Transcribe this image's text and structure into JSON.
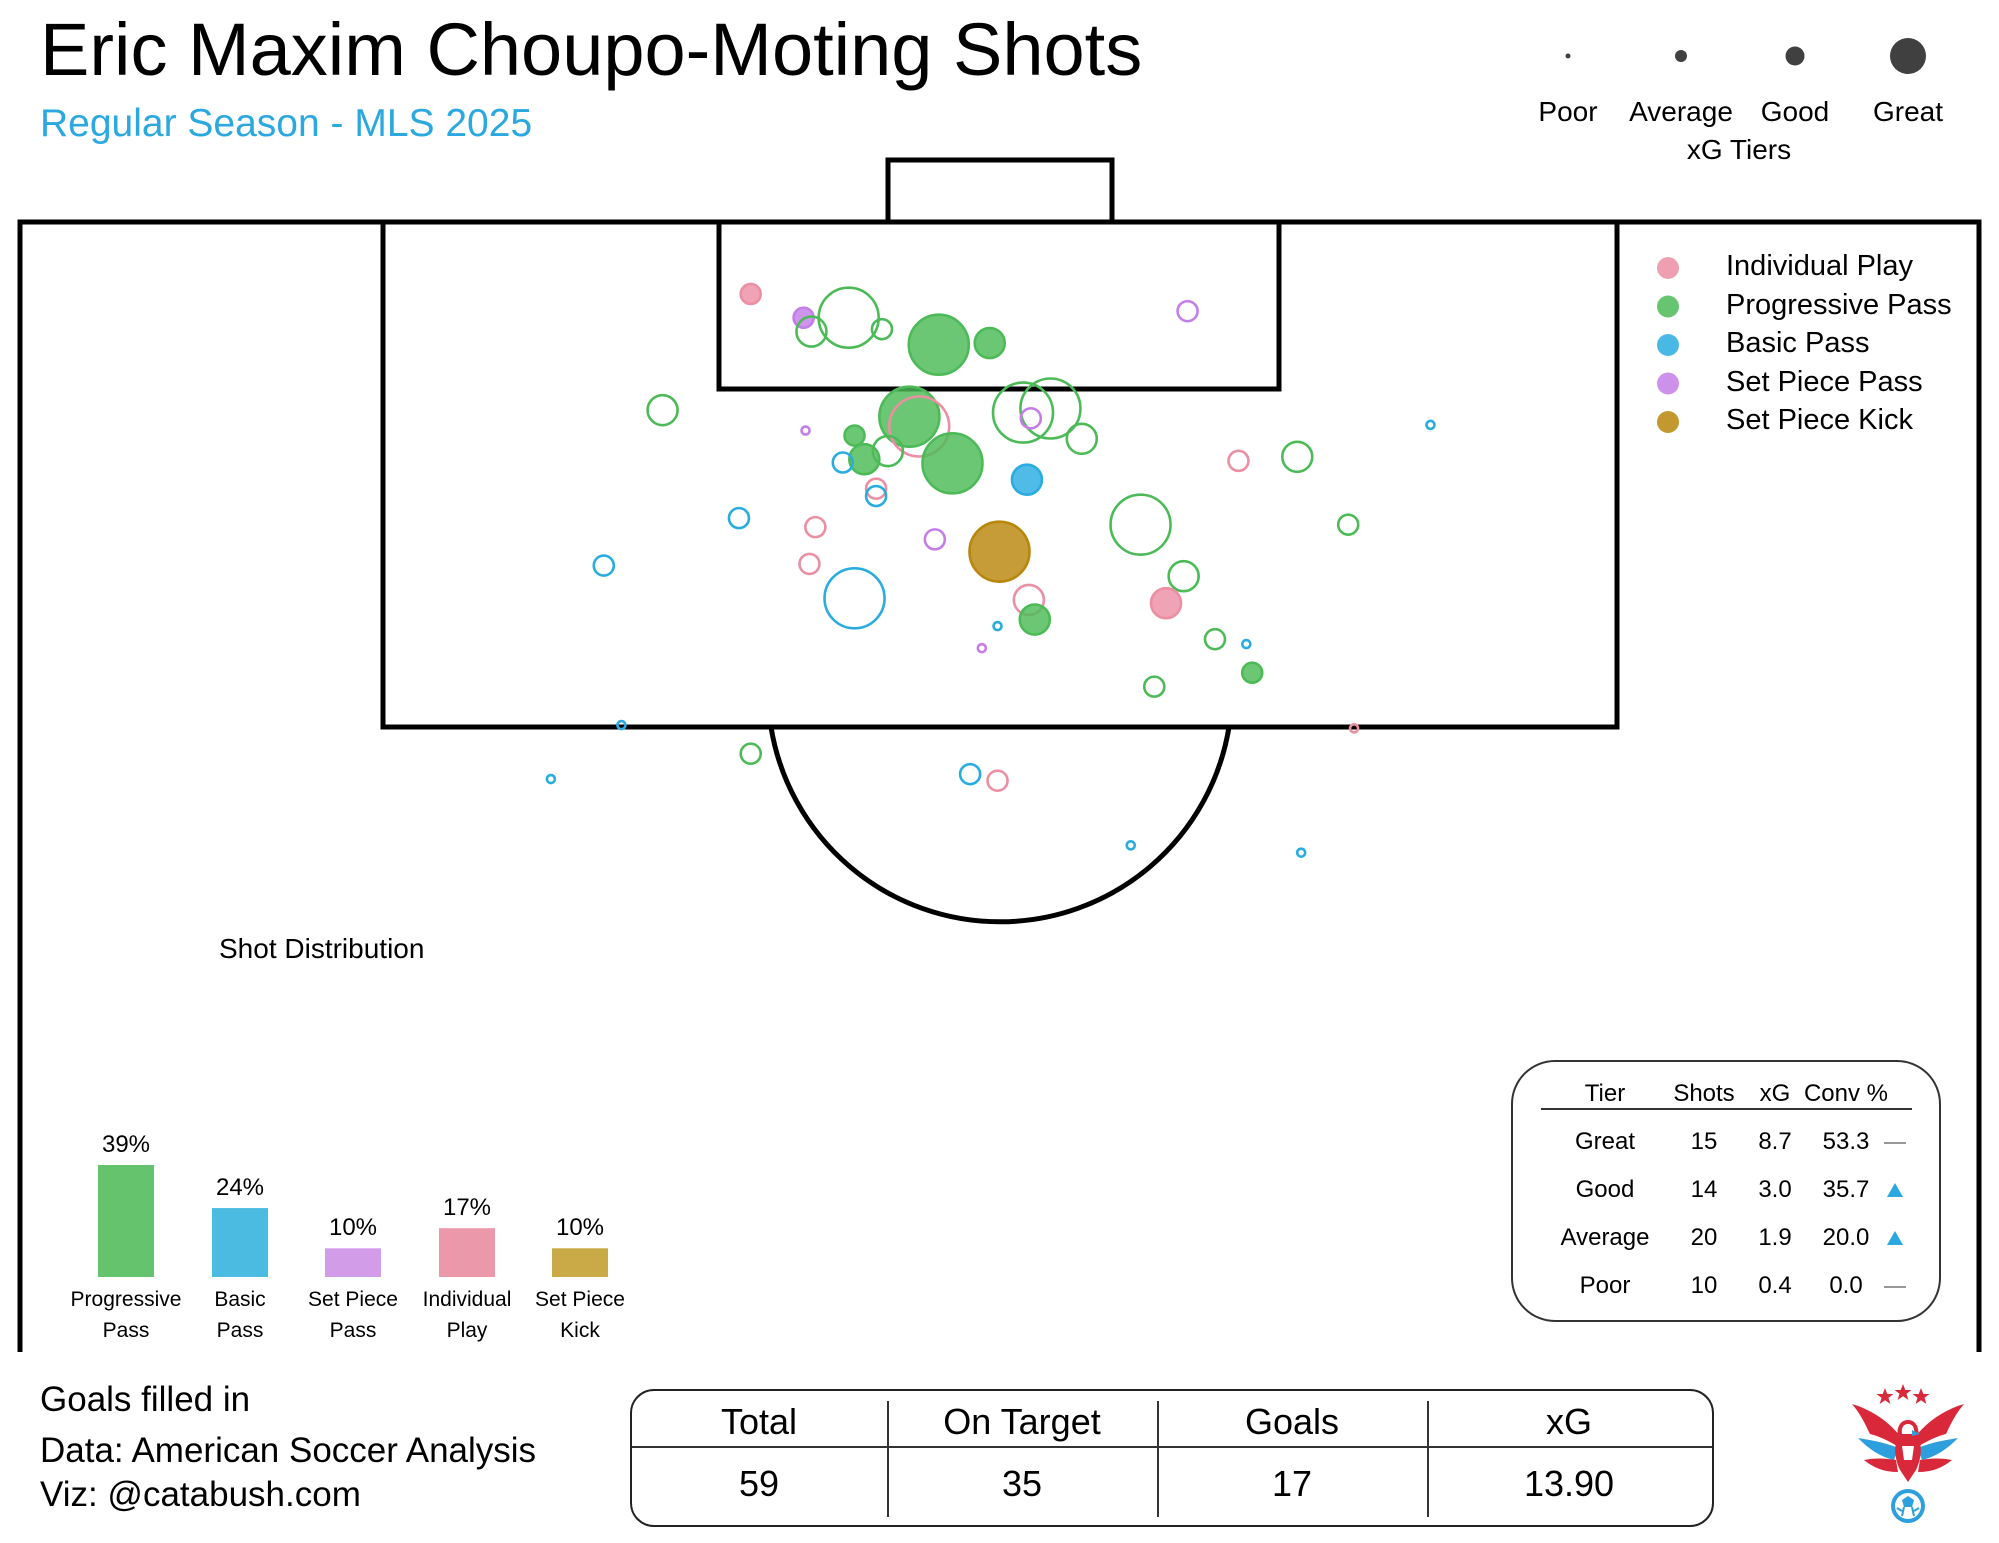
{
  "title": "Eric Maxim Choupo-Moting Shots",
  "subtitle": "Regular Season - MLS 2025",
  "xg_tiers_legend": {
    "title": "xG Tiers",
    "tiers": [
      "Poor",
      "Average",
      "Good",
      "Great"
    ],
    "marker_color": "#404040"
  },
  "play_type_legend": [
    {
      "label": "Individual Play",
      "color": "#eb8fa3"
    },
    {
      "label": "Progressive Pass",
      "color": "#4cbb57"
    },
    {
      "label": "Basic Pass",
      "color": "#2aace0"
    },
    {
      "label": "Set Piece Pass",
      "color": "#c57ee8"
    },
    {
      "label": "Set Piece Kick",
      "color": "#b8860b"
    }
  ],
  "chart_data": [
    {
      "type": "scatter",
      "title": "Eric Maxim Choupo-Moting Shots",
      "subtitle": "Regular Season - MLS 2025",
      "note": "Goals filled in",
      "axis_ranges": {
        "x": [
          0,
          100
        ],
        "y": [
          0,
          100
        ]
      },
      "grid": false,
      "legend_placement": "top-right",
      "size_encoding": "xG tier (Poor, Average, Good, Great)",
      "fill_encoding": "goal scored",
      "points": [
        {
          "x": 37.3,
          "y": 91.2,
          "tier": "Average",
          "play": "Individual Play",
          "goal": true
        },
        {
          "x": 40.0,
          "y": 88.3,
          "tier": "Average",
          "play": "Set Piece Pass",
          "goal": true
        },
        {
          "x": 42.3,
          "y": 88.3,
          "tier": "Great",
          "play": "Progressive Pass",
          "goal": false
        },
        {
          "x": 40.4,
          "y": 86.6,
          "tier": "Good",
          "play": "Progressive Pass",
          "goal": false
        },
        {
          "x": 44.0,
          "y": 86.9,
          "tier": "Average",
          "play": "Progressive Pass",
          "goal": false
        },
        {
          "x": 46.9,
          "y": 85.0,
          "tier": "Great",
          "play": "Progressive Pass",
          "goal": true
        },
        {
          "x": 49.5,
          "y": 85.2,
          "tier": "Good",
          "play": "Progressive Pass",
          "goal": true
        },
        {
          "x": 59.6,
          "y": 89.1,
          "tier": "Average",
          "play": "Set Piece Pass",
          "goal": false
        },
        {
          "x": 32.8,
          "y": 77.0,
          "tier": "Good",
          "play": "Progressive Pass",
          "goal": false
        },
        {
          "x": 40.1,
          "y": 74.5,
          "tier": "Poor",
          "play": "Set Piece Pass",
          "goal": false
        },
        {
          "x": 45.4,
          "y": 76.2,
          "tier": "Great",
          "play": "Progressive Pass",
          "goal": true
        },
        {
          "x": 45.9,
          "y": 75.0,
          "tier": "Great",
          "play": "Individual Play",
          "goal": false
        },
        {
          "x": 51.2,
          "y": 76.7,
          "tier": "Great",
          "play": "Progressive Pass",
          "goal": false
        },
        {
          "x": 52.6,
          "y": 77.2,
          "tier": "Great",
          "play": "Progressive Pass",
          "goal": false
        },
        {
          "x": 51.6,
          "y": 76.0,
          "tier": "Average",
          "play": "Set Piece Pass",
          "goal": false
        },
        {
          "x": 54.2,
          "y": 73.5,
          "tier": "Good",
          "play": "Progressive Pass",
          "goal": false
        },
        {
          "x": 42.6,
          "y": 73.9,
          "tier": "Average",
          "play": "Progressive Pass",
          "goal": true
        },
        {
          "x": 44.3,
          "y": 72.0,
          "tier": "Good",
          "play": "Progressive Pass",
          "goal": false
        },
        {
          "x": 43.1,
          "y": 71.0,
          "tier": "Good",
          "play": "Progressive Pass",
          "goal": true
        },
        {
          "x": 42.0,
          "y": 70.6,
          "tier": "Average",
          "play": "Basic Pass",
          "goal": false
        },
        {
          "x": 47.6,
          "y": 70.5,
          "tier": "Great",
          "play": "Progressive Pass",
          "goal": true
        },
        {
          "x": 51.4,
          "y": 68.5,
          "tier": "Good",
          "play": "Basic Pass",
          "goal": true
        },
        {
          "x": 43.7,
          "y": 67.4,
          "tier": "Average",
          "play": "Individual Play",
          "goal": false
        },
        {
          "x": 43.7,
          "y": 66.5,
          "tier": "Average",
          "play": "Basic Pass",
          "goal": false
        },
        {
          "x": 57.2,
          "y": 63.0,
          "tier": "Great",
          "play": "Progressive Pass",
          "goal": false
        },
        {
          "x": 62.2,
          "y": 70.8,
          "tier": "Average",
          "play": "Individual Play",
          "goal": false
        },
        {
          "x": 65.2,
          "y": 71.3,
          "tier": "Good",
          "play": "Progressive Pass",
          "goal": false
        },
        {
          "x": 72.0,
          "y": 75.2,
          "tier": "Poor",
          "play": "Basic Pass",
          "goal": false
        },
        {
          "x": 36.7,
          "y": 63.8,
          "tier": "Average",
          "play": "Basic Pass",
          "goal": false
        },
        {
          "x": 40.6,
          "y": 62.7,
          "tier": "Average",
          "play": "Individual Play",
          "goal": false
        },
        {
          "x": 46.7,
          "y": 61.2,
          "tier": "Average",
          "play": "Set Piece Pass",
          "goal": false
        },
        {
          "x": 50.0,
          "y": 59.7,
          "tier": "Great",
          "play": "Set Piece Kick",
          "goal": true
        },
        {
          "x": 59.4,
          "y": 56.7,
          "tier": "Good",
          "play": "Progressive Pass",
          "goal": false
        },
        {
          "x": 67.8,
          "y": 63.0,
          "tier": "Average",
          "play": "Progressive Pass",
          "goal": false
        },
        {
          "x": 29.8,
          "y": 58.0,
          "tier": "Average",
          "play": "Basic Pass",
          "goal": false
        },
        {
          "x": 40.3,
          "y": 58.2,
          "tier": "Average",
          "play": "Individual Play",
          "goal": false
        },
        {
          "x": 42.6,
          "y": 54.0,
          "tier": "Great",
          "play": "Basic Pass",
          "goal": false
        },
        {
          "x": 51.5,
          "y": 53.8,
          "tier": "Good",
          "play": "Individual Play",
          "goal": false
        },
        {
          "x": 58.5,
          "y": 53.4,
          "tier": "Good",
          "play": "Individual Play",
          "goal": true
        },
        {
          "x": 51.8,
          "y": 51.4,
          "tier": "Good",
          "play": "Progressive Pass",
          "goal": true
        },
        {
          "x": 49.9,
          "y": 50.6,
          "tier": "Poor",
          "play": "Basic Pass",
          "goal": false
        },
        {
          "x": 61.0,
          "y": 49.0,
          "tier": "Average",
          "play": "Progressive Pass",
          "goal": false
        },
        {
          "x": 62.6,
          "y": 48.4,
          "tier": "Poor",
          "play": "Basic Pass",
          "goal": false
        },
        {
          "x": 49.1,
          "y": 47.9,
          "tier": "Poor",
          "play": "Set Piece Pass",
          "goal": false
        },
        {
          "x": 62.9,
          "y": 44.9,
          "tier": "Average",
          "play": "Progressive Pass",
          "goal": true
        },
        {
          "x": 57.9,
          "y": 43.2,
          "tier": "Average",
          "play": "Progressive Pass",
          "goal": false
        },
        {
          "x": 30.7,
          "y": 38.5,
          "tier": "Poor",
          "play": "Basic Pass",
          "goal": false
        },
        {
          "x": 68.1,
          "y": 38.1,
          "tier": "Poor",
          "play": "Individual Play",
          "goal": false
        },
        {
          "x": 37.3,
          "y": 35.0,
          "tier": "Average",
          "play": "Progressive Pass",
          "goal": false
        },
        {
          "x": 48.5,
          "y": 32.5,
          "tier": "Average",
          "play": "Basic Pass",
          "goal": false
        },
        {
          "x": 49.9,
          "y": 31.7,
          "tier": "Average",
          "play": "Individual Play",
          "goal": false
        },
        {
          "x": 27.1,
          "y": 31.9,
          "tier": "Poor",
          "play": "Basic Pass",
          "goal": false
        },
        {
          "x": 56.7,
          "y": 23.8,
          "tier": "Poor",
          "play": "Basic Pass",
          "goal": false
        },
        {
          "x": 65.4,
          "y": 22.9,
          "tier": "Poor",
          "play": "Basic Pass",
          "goal": false
        }
      ]
    },
    {
      "type": "bar",
      "title": "Shot Distribution",
      "categories": [
        "Progressive Pass",
        "Basic Pass",
        "Set Piece Pass",
        "Individual Play",
        "Set Piece Kick"
      ],
      "values": [
        39,
        24,
        10,
        17,
        10
      ],
      "value_labels": [
        "39%",
        "24%",
        "10%",
        "17%",
        "10%"
      ],
      "colors": [
        "#66c36d",
        "#4bbbe1",
        "#d29ce9",
        "#eb98aa",
        "#c9aa46"
      ],
      "ylim": [
        0,
        39
      ]
    },
    {
      "type": "table",
      "columns": [
        "Tier",
        "Shots",
        "xG",
        "Conv %"
      ],
      "rows": [
        {
          "tier": "Great",
          "shots": "15",
          "xg": "8.7",
          "conv": "53.3",
          "trend": "flat"
        },
        {
          "tier": "Good",
          "shots": "14",
          "xg": "3.0",
          "conv": "35.7",
          "trend": "up"
        },
        {
          "tier": "Average",
          "shots": "20",
          "xg": "1.9",
          "conv": "20.0",
          "trend": "up"
        },
        {
          "tier": "Poor",
          "shots": "10",
          "xg": "0.4",
          "conv": "0.0",
          "trend": "flat"
        }
      ]
    }
  ],
  "bar_labels": [
    [
      "Progressive",
      "Pass"
    ],
    [
      "Basic",
      "Pass"
    ],
    [
      "Set Piece",
      "Pass"
    ],
    [
      "Individual",
      "Play"
    ],
    [
      "Set Piece",
      "Kick"
    ]
  ],
  "trend_color": "#2aa8df",
  "footer": {
    "note": "Goals filled in",
    "data_credit": "Data: American Soccer Analysis",
    "viz_credit": "Viz: @catabush.com"
  },
  "summary": {
    "headers": [
      "Total",
      "On Target",
      "Goals",
      "xG"
    ],
    "values": [
      "59",
      "35",
      "17",
      "13.90"
    ]
  },
  "logo_colors": {
    "red": "#d8283a",
    "blue": "#2d9fdc"
  }
}
